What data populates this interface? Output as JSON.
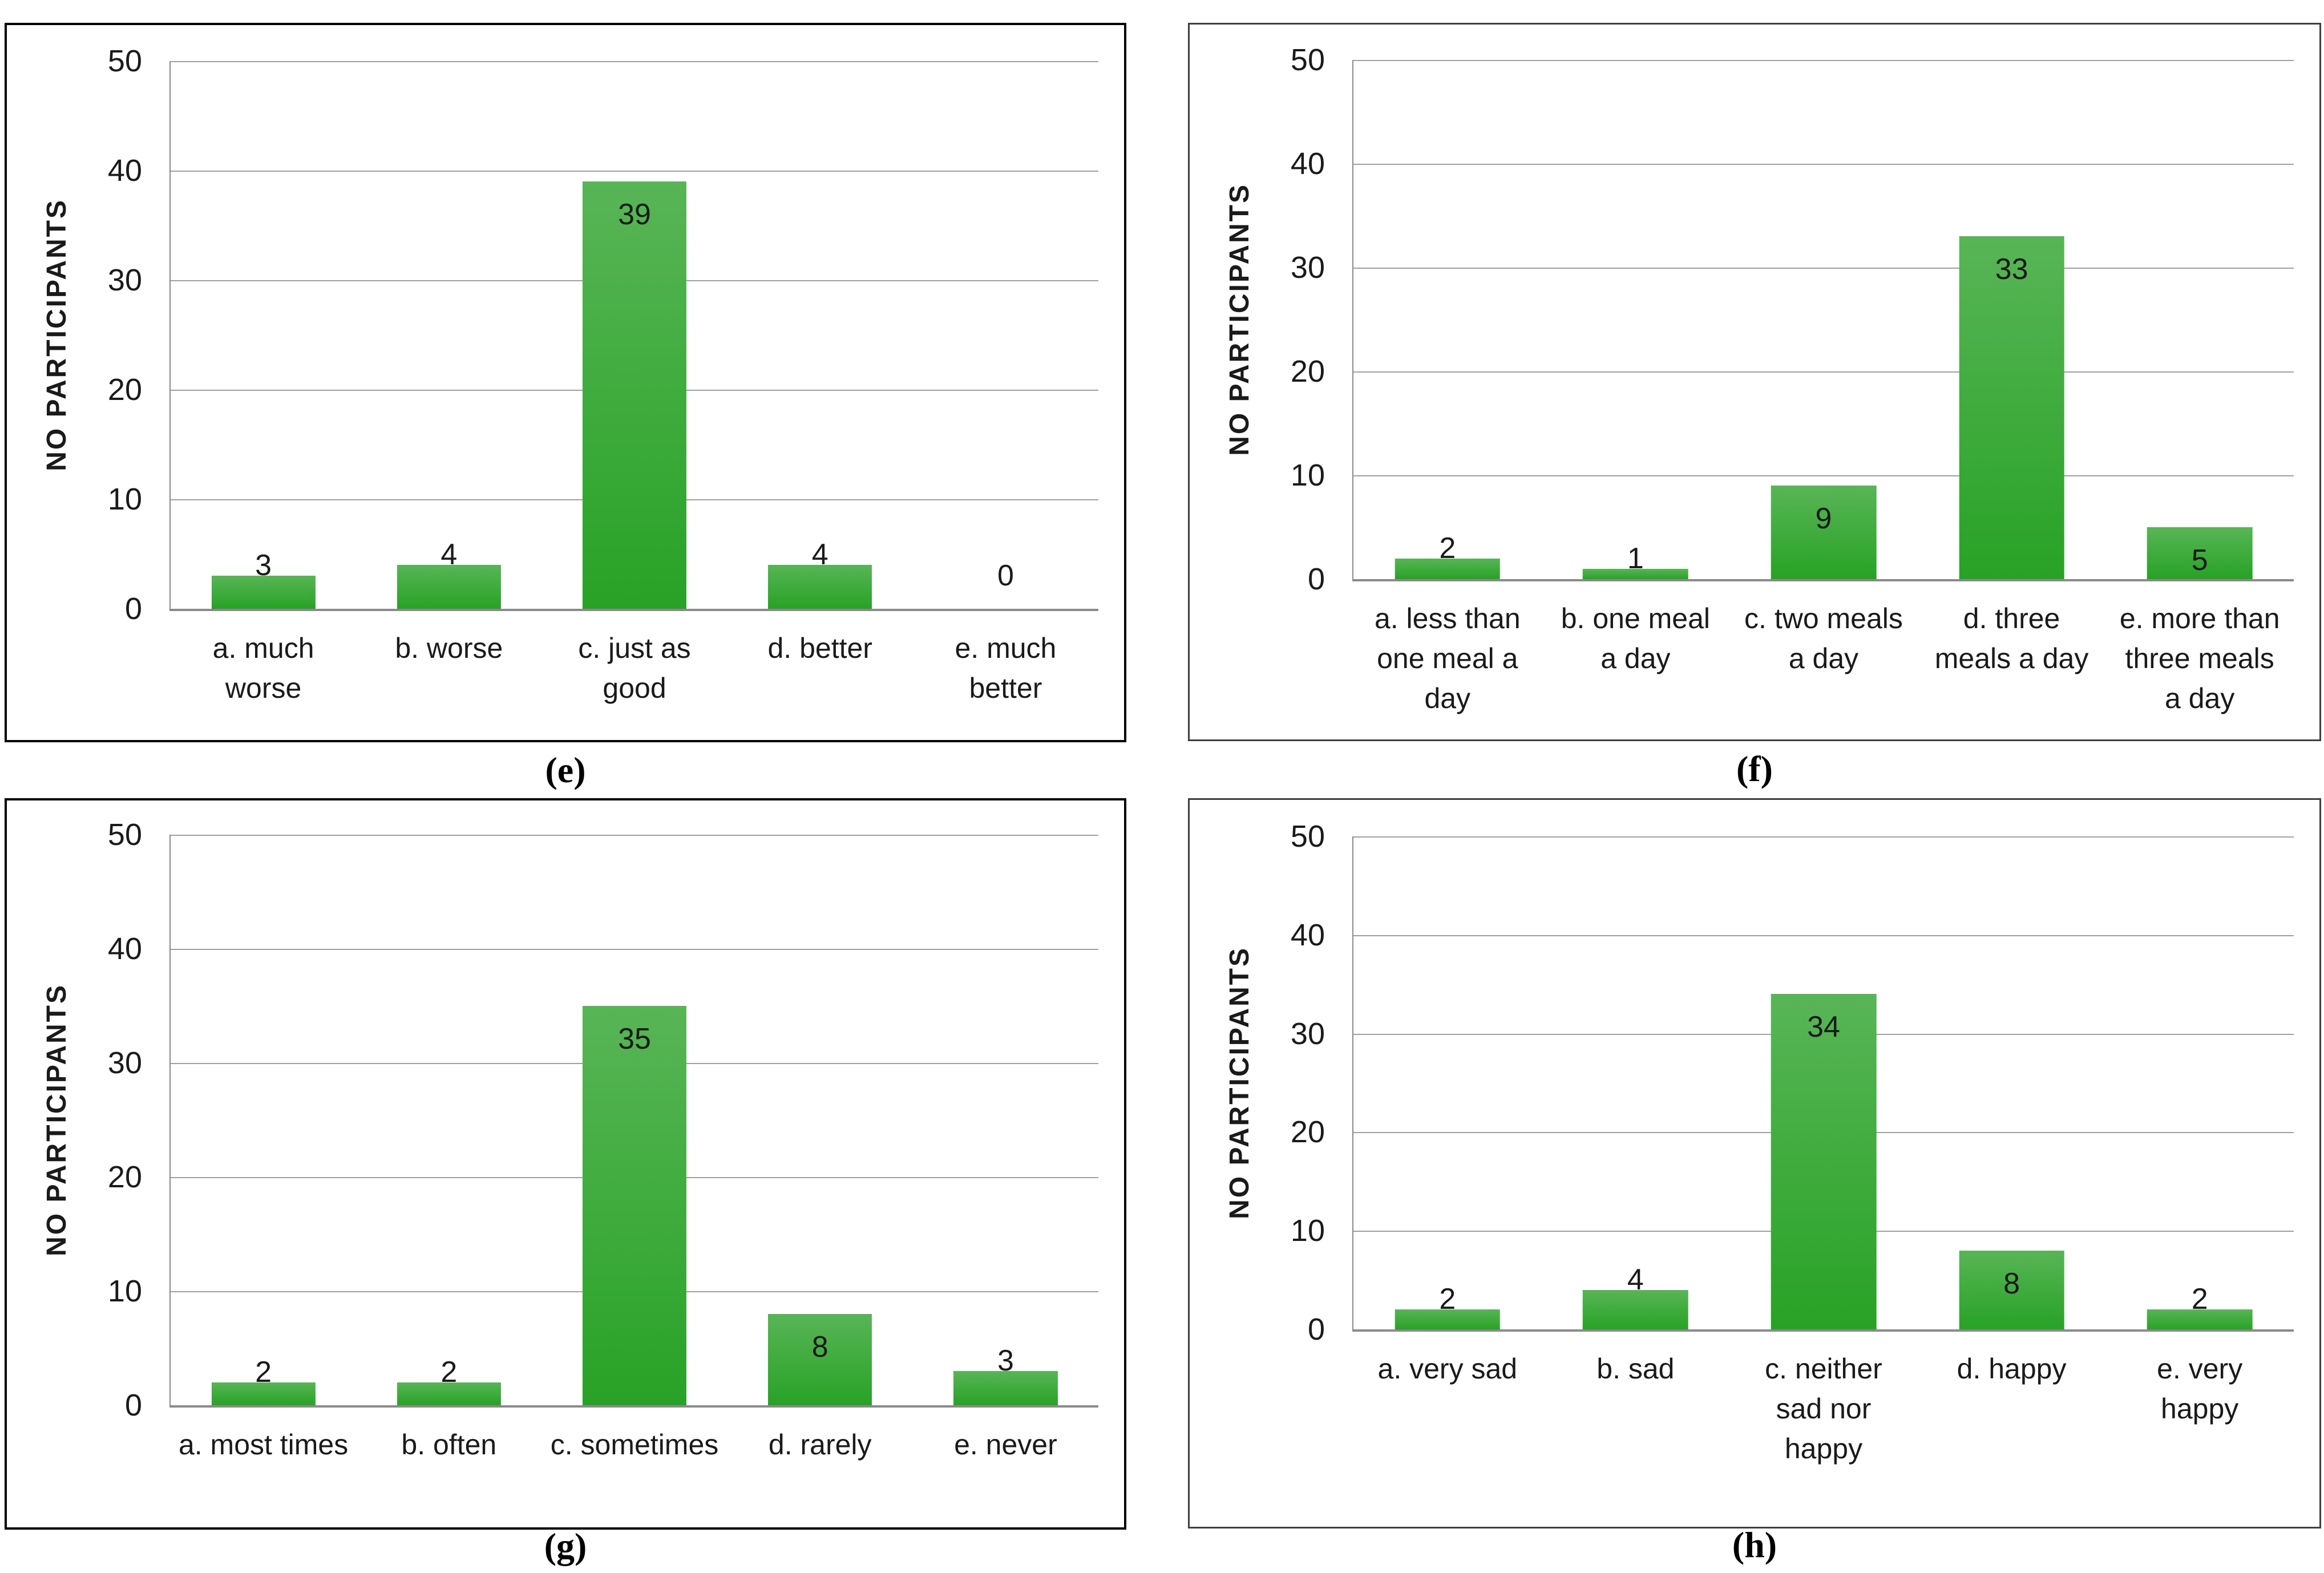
{
  "page": {
    "description": "Four green bar charts of survey responses, panels (e), (f), (g), (h)",
    "background": "#ffffff"
  },
  "colors": {
    "bar_gradient_top": "#58b556",
    "bar_gradient_bottom": "#28a226",
    "gridline": "#a0a0a0",
    "axis_line": "#8a8a8a",
    "text": "#1a1a1a",
    "panel_border_thick": "#000000",
    "panel_border_thin": "#3f3f3f"
  },
  "chart_data": [
    {
      "id": "e",
      "type": "bar",
      "caption": "(e)",
      "title": "",
      "xlabel": "",
      "ylabel": "NO PARTICIPANTS",
      "ylim": [
        0,
        50
      ],
      "yticks": [
        0,
        10,
        20,
        30,
        40,
        50
      ],
      "grid": true,
      "legend": false,
      "categories": [
        "a. much worse",
        "b. worse",
        "c. just as good",
        "d. better",
        "e. much better"
      ],
      "categories_wrapped": [
        [
          "a. much",
          "worse"
        ],
        [
          "b. worse"
        ],
        [
          "c. just as",
          "good"
        ],
        [
          "d. better"
        ],
        [
          "e. much",
          "better"
        ]
      ],
      "values": [
        3,
        4,
        39,
        4,
        0
      ]
    },
    {
      "id": "f",
      "type": "bar",
      "caption": "(f)",
      "title": "",
      "xlabel": "",
      "ylabel": "NO PARTICIPANTS",
      "ylim": [
        0,
        50
      ],
      "yticks": [
        0,
        10,
        20,
        30,
        40,
        50
      ],
      "grid": true,
      "legend": false,
      "categories": [
        "a. less than one meal a day",
        "b. one meal a day",
        "c. two meals a day",
        "d. three meals a day",
        "e. more than three meals a day"
      ],
      "categories_wrapped": [
        [
          "a. less than",
          "one meal a",
          "day"
        ],
        [
          "b. one meal",
          "a day"
        ],
        [
          "c. two meals",
          "a day"
        ],
        [
          "d. three",
          "meals a day"
        ],
        [
          "e. more than",
          "three meals",
          "a day"
        ]
      ],
      "values": [
        2,
        1,
        9,
        33,
        5
      ]
    },
    {
      "id": "g",
      "type": "bar",
      "caption": "(g)",
      "title": "",
      "xlabel": "",
      "ylabel": "NO PARTICIPANTS",
      "ylim": [
        0,
        50
      ],
      "yticks": [
        0,
        10,
        20,
        30,
        40,
        50
      ],
      "grid": true,
      "legend": false,
      "categories": [
        "a. most times",
        "b. often",
        "c. sometimes",
        "d. rarely",
        "e. never"
      ],
      "categories_wrapped": [
        [
          "a. most times"
        ],
        [
          "b. often"
        ],
        [
          "c. sometimes"
        ],
        [
          "d. rarely"
        ],
        [
          "e. never"
        ]
      ],
      "values": [
        2,
        2,
        35,
        8,
        3
      ]
    },
    {
      "id": "h",
      "type": "bar",
      "caption": "(h)",
      "title": "",
      "xlabel": "",
      "ylabel": "NO PARTICIPANTS",
      "ylim": [
        0,
        50
      ],
      "yticks": [
        0,
        10,
        20,
        30,
        40,
        50
      ],
      "grid": true,
      "legend": false,
      "categories": [
        "a. very sad",
        "b. sad",
        "c. neither sad nor happy",
        "d. happy",
        "e. very happy"
      ],
      "categories_wrapped": [
        [
          "a. very sad"
        ],
        [
          "b. sad"
        ],
        [
          "c. neither",
          "sad nor",
          "happy"
        ],
        [
          "d. happy"
        ],
        [
          "e. very",
          "happy"
        ]
      ],
      "values": [
        2,
        4,
        34,
        8,
        2
      ]
    }
  ]
}
